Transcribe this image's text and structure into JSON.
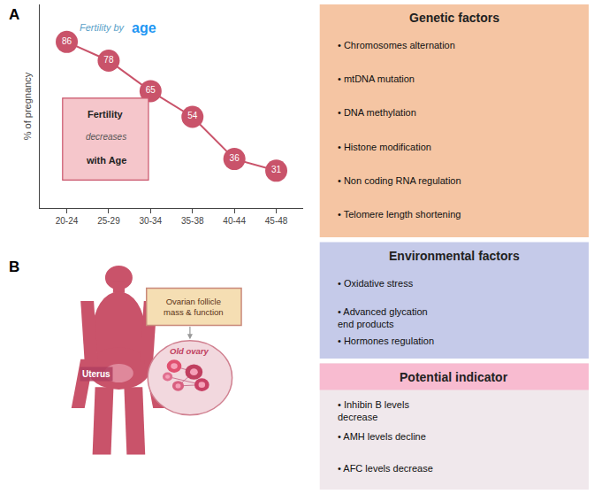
{
  "chart_data": [
    {
      "type": "line",
      "title": "A",
      "categories": [
        "20-24",
        "25-29",
        "30-34",
        "35-38",
        "40-44",
        "45-48"
      ],
      "values": [
        86,
        78,
        65,
        54,
        36,
        31
      ],
      "ylabel": "% of pregnancy",
      "ylim": [
        15,
        102
      ],
      "tick_labels": "x",
      "data_labels": true,
      "grid": false,
      "color": "#c9536a",
      "annotations": [
        "Fertility by",
        "age",
        "Fertility",
        "decreases",
        "with Age"
      ]
    },
    {
      "type": "diagram",
      "title": "B",
      "color": "#c9536a",
      "annotations": [
        "Uterus",
        "Ovarian follicle\nmass & function",
        "Old ovary"
      ]
    },
    {
      "type": "text",
      "title": "Genetic factors",
      "color": "#f5c5a3",
      "annotations": [
        "• Chromosomes alternation",
        "• mtDNA mutation",
        "• DNA methylation",
        "• Histone modification",
        "• Non coding RNA regulation",
        "• Telomere length shortening"
      ]
    },
    {
      "type": "text",
      "title": "Environmental factors",
      "color": "#c5cae9",
      "annotations": [
        "• Oxidative stress",
        "• Advanced glycation\nend products",
        "• Hormones regulation"
      ]
    },
    {
      "type": "text",
      "title": "Potential indicator",
      "color": "#f8bbd0",
      "annotations": [
        "• Inhibin B levels\ndecrease",
        "• AMH levels decline",
        "• AFC levels decrease"
      ]
    }
  ]
}
